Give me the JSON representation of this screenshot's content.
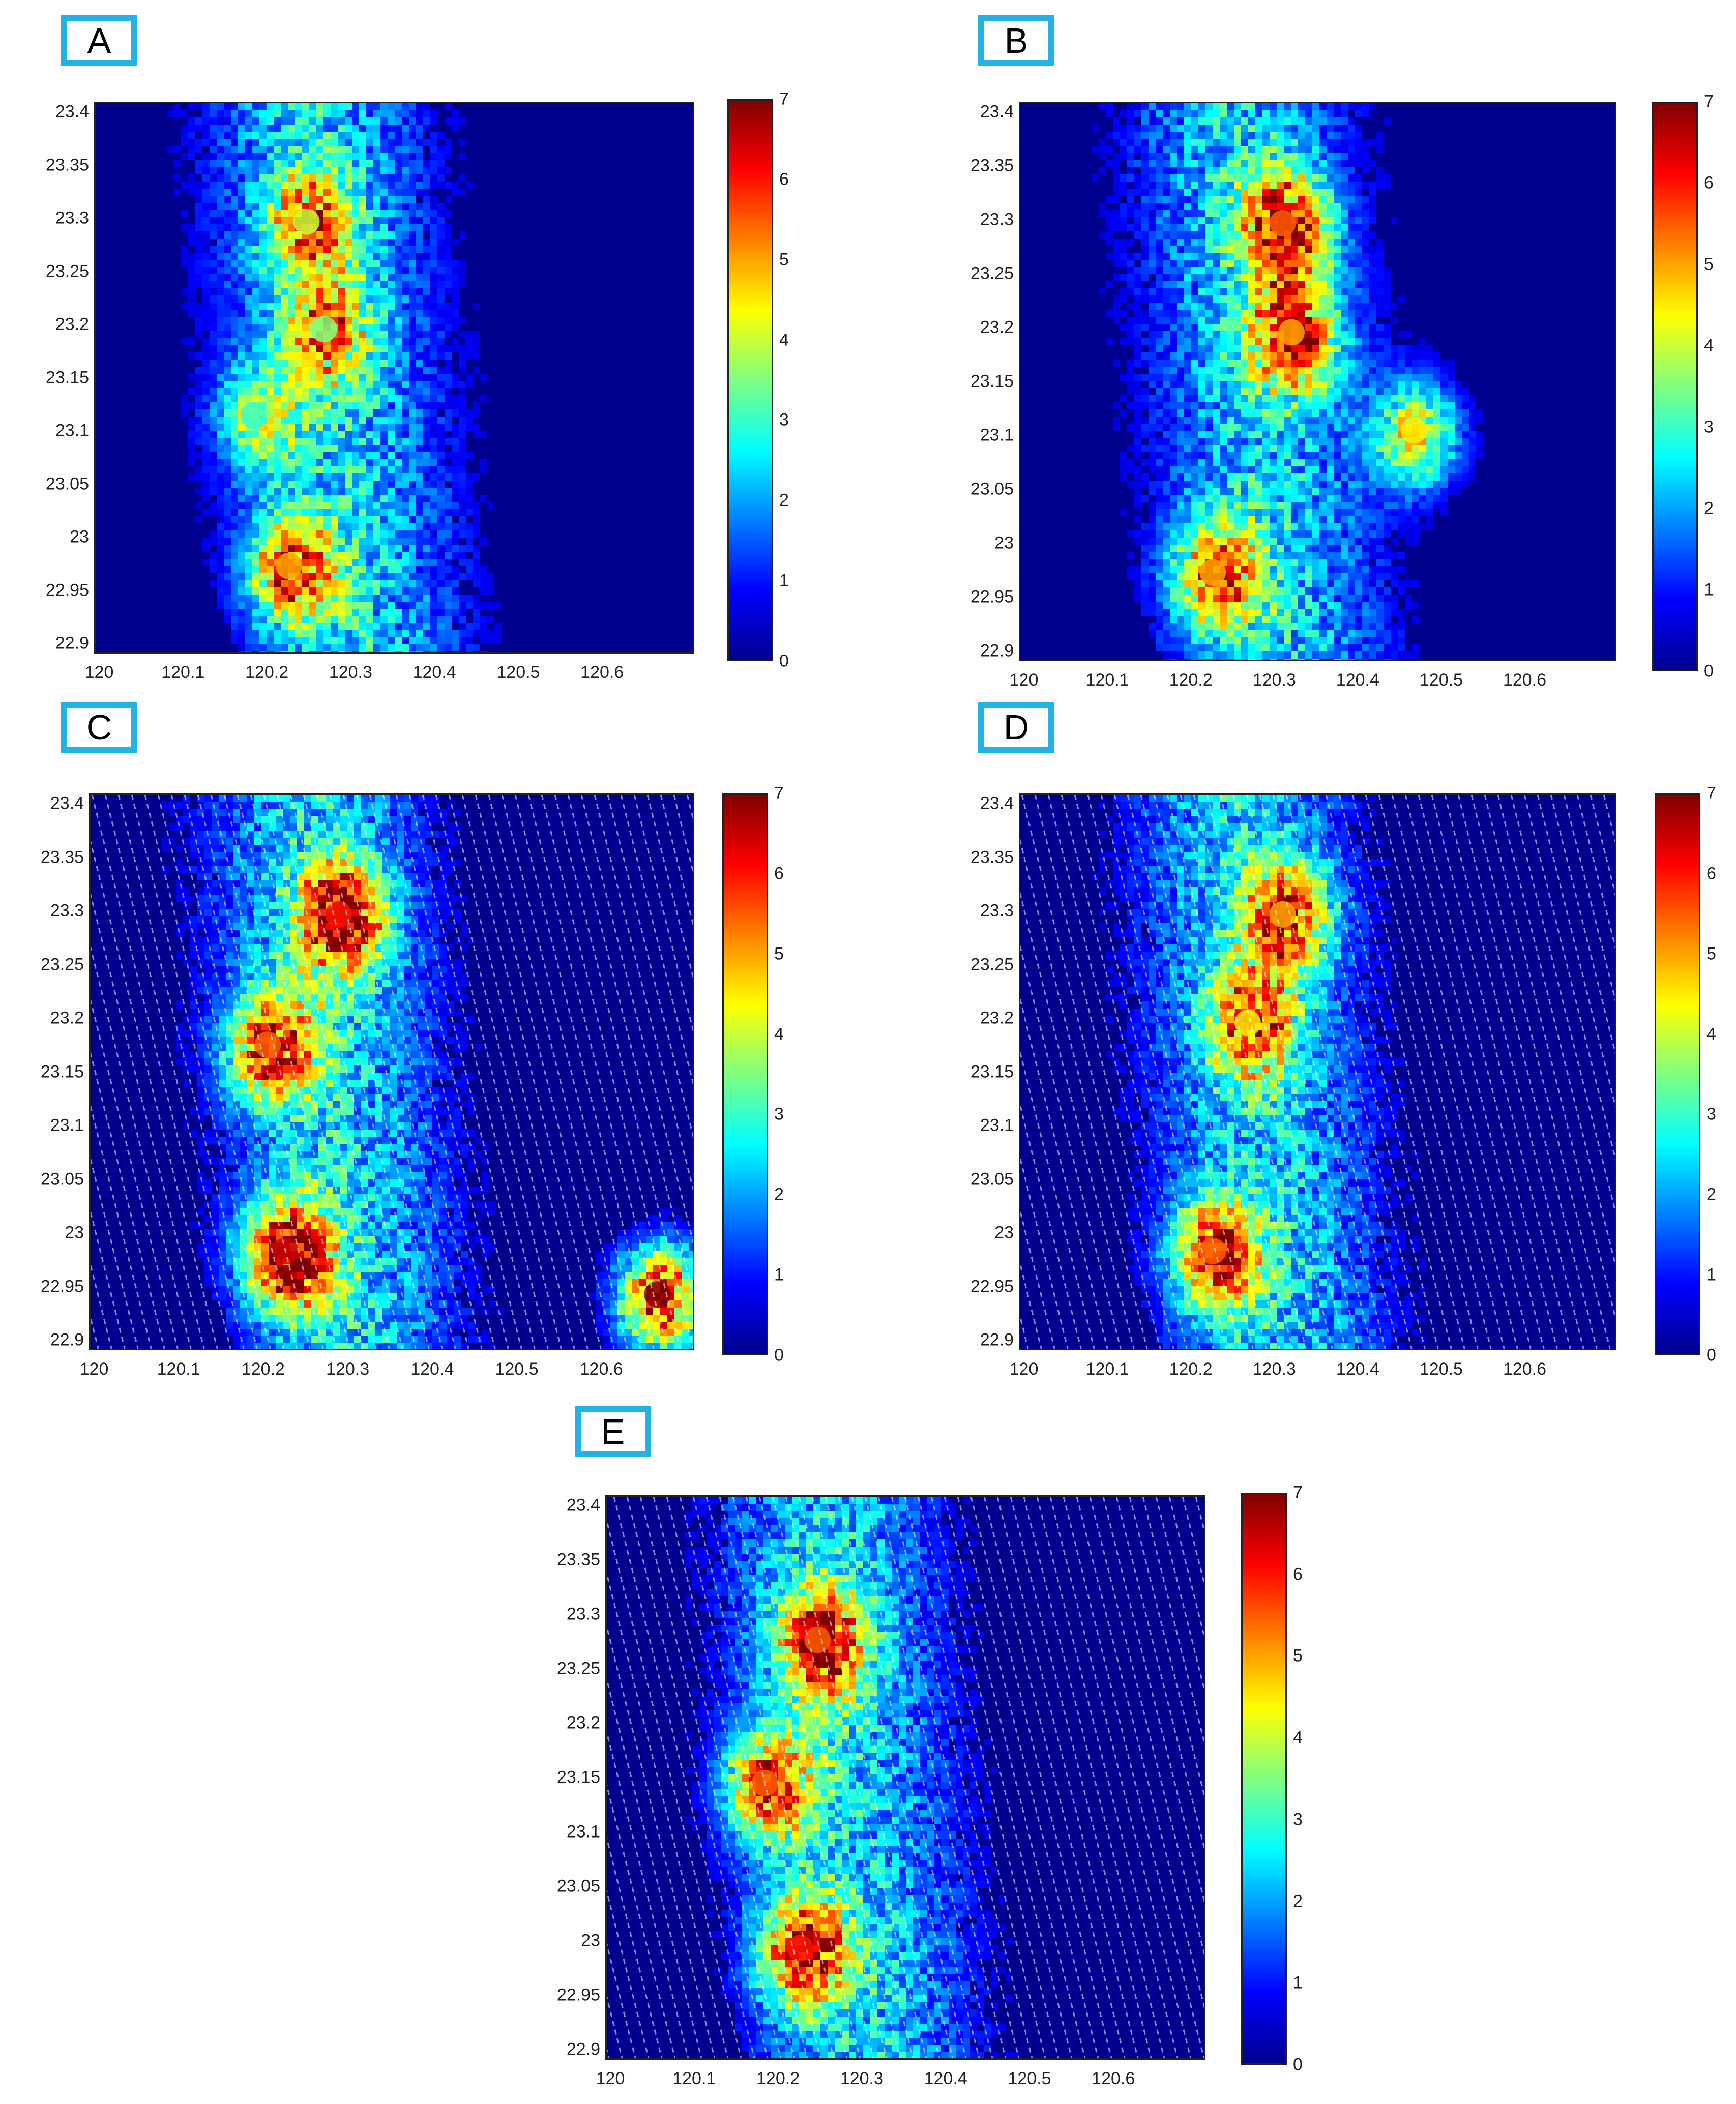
{
  "colors": {
    "label_border": "#23b2e6",
    "colormap": [
      "#00008f",
      "#0000ff",
      "#0080ff",
      "#00ffff",
      "#80ff80",
      "#ffff00",
      "#ff8000",
      "#ff0000",
      "#800000"
    ]
  },
  "chart_data": [
    {
      "panel": "A",
      "type": "heatmap",
      "x_ticks": [
        "120",
        "120.1",
        "120.2",
        "120.3",
        "120.4",
        "120.5",
        "120.6"
      ],
      "y_ticks": [
        "23.4",
        "23.35",
        "23.3",
        "23.25",
        "23.2",
        "23.15",
        "23.1",
        "23.05",
        "23",
        "22.95",
        "22.9"
      ],
      "xlim": [
        120,
        120.68
      ],
      "ylim": [
        22.9,
        23.41
      ],
      "colorbar": {
        "ticks": [
          "0",
          "1",
          "2",
          "3",
          "4",
          "5",
          "6",
          "7"
        ],
        "range": [
          0,
          7
        ],
        "colormap": "jet"
      },
      "striped": false,
      "hotspots": [
        {
          "lon": 120.22,
          "lat": 22.98,
          "value": 5.0
        },
        {
          "lon": 120.24,
          "lat": 23.3,
          "value": 4.0
        },
        {
          "lon": 120.26,
          "lat": 23.2,
          "value": 3.5
        },
        {
          "lon": 120.18,
          "lat": 23.12,
          "value": 3.0
        }
      ]
    },
    {
      "panel": "B",
      "type": "heatmap",
      "x_ticks": [
        "120",
        "120.1",
        "120.2",
        "120.3",
        "120.4",
        "120.5",
        "120.6"
      ],
      "y_ticks": [
        "23.4",
        "23.35",
        "23.3",
        "23.25",
        "23.2",
        "23.15",
        "23.1",
        "23.05",
        "23",
        "22.95",
        "22.9"
      ],
      "xlim": [
        120,
        120.68
      ],
      "ylim": [
        22.9,
        23.41
      ],
      "colorbar": {
        "ticks": [
          "0",
          "1",
          "2",
          "3",
          "4",
          "5",
          "6",
          "7"
        ],
        "range": [
          0,
          7
        ],
        "colormap": "jet"
      },
      "striped": false,
      "hotspots": [
        {
          "lon": 120.22,
          "lat": 22.98,
          "value": 5.0
        },
        {
          "lon": 120.3,
          "lat": 23.3,
          "value": 5.5
        },
        {
          "lon": 120.31,
          "lat": 23.2,
          "value": 5.0
        },
        {
          "lon": 120.45,
          "lat": 23.11,
          "value": 4.5
        }
      ]
    },
    {
      "panel": "C",
      "type": "heatmap",
      "x_ticks": [
        "120",
        "120.1",
        "120.2",
        "120.3",
        "120.4",
        "120.5",
        "120.6"
      ],
      "y_ticks": [
        "23.4",
        "23.35",
        "23.3",
        "23.25",
        "23.2",
        "23.15",
        "23.1",
        "23.05",
        "23",
        "22.95",
        "22.9"
      ],
      "xlim": [
        120,
        120.68
      ],
      "ylim": [
        22.9,
        23.41
      ],
      "colorbar": {
        "ticks": [
          "0",
          "1",
          "2",
          "3",
          "4",
          "5",
          "6",
          "7"
        ],
        "range": [
          0,
          7
        ],
        "colormap": "jet"
      },
      "striped": true,
      "hotspots": [
        {
          "lon": 120.22,
          "lat": 22.99,
          "value": 6.5
        },
        {
          "lon": 120.28,
          "lat": 23.3,
          "value": 6.0
        },
        {
          "lon": 120.2,
          "lat": 23.18,
          "value": 5.5
        },
        {
          "lon": 120.64,
          "lat": 22.95,
          "value": 7.0
        }
      ]
    },
    {
      "panel": "D",
      "type": "heatmap",
      "x_ticks": [
        "120",
        "120.1",
        "120.2",
        "120.3",
        "120.4",
        "120.5",
        "120.6"
      ],
      "y_ticks": [
        "23.4",
        "23.35",
        "23.3",
        "23.25",
        "23.2",
        "23.15",
        "23.1",
        "23.05",
        "23",
        "22.95",
        "22.9"
      ],
      "xlim": [
        120,
        120.68
      ],
      "ylim": [
        22.9,
        23.41
      ],
      "colorbar": {
        "ticks": [
          "0",
          "1",
          "2",
          "3",
          "4",
          "5",
          "6",
          "7"
        ],
        "range": [
          0,
          7
        ],
        "colormap": "jet"
      },
      "striped": true,
      "hotspots": [
        {
          "lon": 120.22,
          "lat": 22.99,
          "value": 5.5
        },
        {
          "lon": 120.3,
          "lat": 23.3,
          "value": 5.0
        },
        {
          "lon": 120.26,
          "lat": 23.2,
          "value": 4.5
        }
      ]
    },
    {
      "panel": "E",
      "type": "heatmap",
      "x_ticks": [
        "120",
        "120.1",
        "120.2",
        "120.3",
        "120.4",
        "120.5",
        "120.6"
      ],
      "y_ticks": [
        "23.4",
        "23.35",
        "23.3",
        "23.25",
        "23.2",
        "23.15",
        "23.1",
        "23.05",
        "23",
        "22.95",
        "22.9"
      ],
      "xlim": [
        120,
        120.68
      ],
      "ylim": [
        22.9,
        23.41
      ],
      "colorbar": {
        "ticks": [
          "0",
          "1",
          "2",
          "3",
          "4",
          "5",
          "6",
          "7"
        ],
        "range": [
          0,
          7
        ],
        "colormap": "jet"
      },
      "striped": true,
      "hotspots": [
        {
          "lon": 120.22,
          "lat": 23.0,
          "value": 6.0
        },
        {
          "lon": 120.24,
          "lat": 23.28,
          "value": 5.5
        },
        {
          "lon": 120.18,
          "lat": 23.15,
          "value": 5.5
        }
      ]
    }
  ]
}
